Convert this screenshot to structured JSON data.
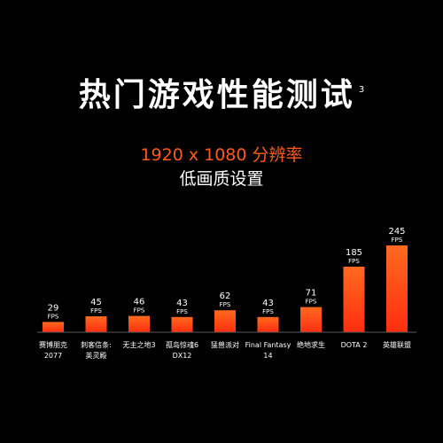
{
  "header": {
    "title": "热门游戏性能测试",
    "footnote_mark": "3",
    "resolution": "1920 x 1080 分辨率",
    "quality": "低画质设置"
  },
  "colors": {
    "background": "#000000",
    "bar_top": "#ff6a1f",
    "bar_bottom": "#ff2e10",
    "accent_text": "#ff5a1c",
    "text": "#ffffff"
  },
  "chart_data": {
    "type": "bar",
    "title": "热门游戏性能测试",
    "subtitle": "1920 x 1080 分辨率 低画质设置",
    "unit": "FPS",
    "grid": false,
    "categories": [
      [
        "赛博朋克",
        "2077"
      ],
      [
        "刺客信条:",
        "英灵殿"
      ],
      [
        "无主之地3"
      ],
      [
        "孤岛惊魂6",
        "DX12"
      ],
      [
        "猛兽派对"
      ],
      [
        "Final Fantasy",
        "14"
      ],
      [
        "绝地求生"
      ],
      [
        "DOTA 2"
      ],
      [
        "英雄联盟"
      ]
    ],
    "series": [
      {
        "values": [
          29,
          45,
          46,
          43,
          62,
          43,
          71,
          185,
          245
        ]
      }
    ],
    "ylim": [
      0,
      245
    ]
  }
}
